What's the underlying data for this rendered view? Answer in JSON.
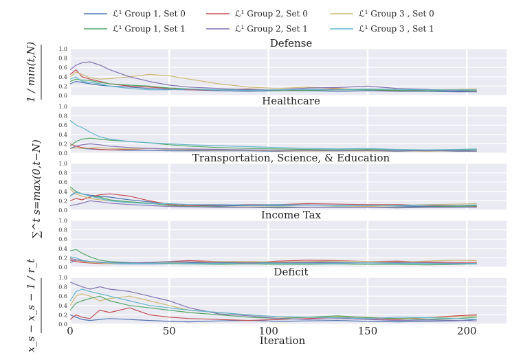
{
  "chart_data": {
    "type": "line",
    "xlabel": "Iteration",
    "ylabel": "1/min(t,N) · Σ_{s=max(0,t−N)}^{t} (x_s − x_{s−1})/r_t",
    "ylabel_parts": {
      "top": "x_s − x_s − 1 / r_t",
      "mid": "∑^t s=max(0,t−N)",
      "bot": "1 / min(t,N)"
    },
    "xlim": [
      0,
      220
    ],
    "ylim": [
      0,
      1.0
    ],
    "x_ticks": [
      0,
      50,
      100,
      150,
      200
    ],
    "y_ticks": [
      0.0,
      0.2,
      0.4,
      0.6,
      0.8,
      1.0
    ],
    "y_tick_labels": [
      "0.0",
      "0.2",
      "0.4",
      "0.6",
      "0.8",
      "1.0"
    ],
    "legend": [
      {
        "name": "ℒ¹ Group 1, Set 0",
        "color": "#4c72b0"
      },
      {
        "name": "ℒ¹ Group 2, Set 0",
        "color": "#c44e52"
      },
      {
        "name": "ℒ¹ Group 3 , Set 0",
        "color": "#ccb974"
      },
      {
        "name": "ℒ¹ Group 1, Set 1",
        "color": "#55a868"
      },
      {
        "name": "ℒ¹ Group 2, Set 1",
        "color": "#8172b2"
      },
      {
        "name": "ℒ¹ Group 3 , Set 1",
        "color": "#64b5cd"
      }
    ],
    "x_points": [
      0,
      3,
      6,
      10,
      15,
      20,
      30,
      40,
      50,
      60,
      75,
      90,
      105,
      120,
      135,
      150,
      165,
      180,
      195,
      205
    ],
    "panels": [
      {
        "title": "Defense",
        "series": [
          [
            0.25,
            0.3,
            0.28,
            0.25,
            0.22,
            0.2,
            0.18,
            0.15,
            0.13,
            0.12,
            0.1,
            0.09,
            0.1,
            0.1,
            0.09,
            0.1,
            0.09,
            0.09,
            0.08,
            0.08
          ],
          [
            0.45,
            0.55,
            0.4,
            0.35,
            0.3,
            0.25,
            0.2,
            0.18,
            0.15,
            0.12,
            0.12,
            0.14,
            0.1,
            0.12,
            0.14,
            0.12,
            0.1,
            0.12,
            0.1,
            0.09
          ],
          [
            0.4,
            0.5,
            0.45,
            0.38,
            0.35,
            0.36,
            0.4,
            0.45,
            0.42,
            0.35,
            0.25,
            0.18,
            0.15,
            0.18,
            0.15,
            0.12,
            0.14,
            0.12,
            0.13,
            0.14
          ],
          [
            0.3,
            0.35,
            0.33,
            0.32,
            0.28,
            0.25,
            0.22,
            0.2,
            0.16,
            0.14,
            0.12,
            0.13,
            0.1,
            0.11,
            0.12,
            0.12,
            0.11,
            0.1,
            0.11,
            0.1
          ],
          [
            0.55,
            0.65,
            0.7,
            0.72,
            0.65,
            0.55,
            0.4,
            0.3,
            0.22,
            0.18,
            0.15,
            0.12,
            0.12,
            0.16,
            0.17,
            0.2,
            0.15,
            0.13,
            0.1,
            0.08
          ],
          [
            0.35,
            0.4,
            0.3,
            0.28,
            0.25,
            0.2,
            0.15,
            0.12,
            0.12,
            0.14,
            0.12,
            0.11,
            0.12,
            0.13,
            0.12,
            0.14,
            0.13,
            0.12,
            0.12,
            0.12
          ]
        ]
      },
      {
        "title": "Healthcare",
        "series": [
          [
            0.1,
            0.12,
            0.1,
            0.09,
            0.08,
            0.07,
            0.06,
            0.06,
            0.05,
            0.05,
            0.05,
            0.05,
            0.04,
            0.05,
            0.05,
            0.05,
            0.04,
            0.05,
            0.04,
            0.04
          ],
          [
            0.2,
            0.15,
            0.12,
            0.1,
            0.08,
            0.07,
            0.08,
            0.1,
            0.09,
            0.07,
            0.06,
            0.06,
            0.05,
            0.05,
            0.05,
            0.05,
            0.05,
            0.05,
            0.05,
            0.05
          ],
          [
            0.1,
            0.12,
            0.1,
            0.11,
            0.12,
            0.1,
            0.09,
            0.1,
            0.08,
            0.07,
            0.06,
            0.06,
            0.05,
            0.05,
            0.05,
            0.05,
            0.05,
            0.04,
            0.05,
            0.05
          ],
          [
            0.15,
            0.25,
            0.3,
            0.32,
            0.3,
            0.28,
            0.25,
            0.22,
            0.18,
            0.15,
            0.12,
            0.1,
            0.09,
            0.08,
            0.07,
            0.08,
            0.07,
            0.06,
            0.06,
            0.08
          ],
          [
            0.1,
            0.15,
            0.18,
            0.2,
            0.18,
            0.15,
            0.12,
            0.1,
            0.09,
            0.09,
            0.08,
            0.07,
            0.06,
            0.06,
            0.05,
            0.06,
            0.05,
            0.05,
            0.05,
            0.05
          ],
          [
            0.7,
            0.6,
            0.55,
            0.45,
            0.35,
            0.3,
            0.25,
            0.22,
            0.2,
            0.18,
            0.16,
            0.14,
            0.12,
            0.1,
            0.09,
            0.1,
            0.08,
            0.07,
            0.08,
            0.09
          ]
        ]
      },
      {
        "title": "Transportation, Science, & Education",
        "series": [
          [
            0.3,
            0.4,
            0.35,
            0.32,
            0.3,
            0.28,
            0.22,
            0.18,
            0.12,
            0.1,
            0.09,
            0.1,
            0.1,
            0.11,
            0.1,
            0.1,
            0.09,
            0.08,
            0.09,
            0.1
          ],
          [
            0.2,
            0.25,
            0.22,
            0.28,
            0.33,
            0.35,
            0.3,
            0.2,
            0.12,
            0.1,
            0.11,
            0.12,
            0.12,
            0.14,
            0.13,
            0.12,
            0.12,
            0.1,
            0.09,
            0.08
          ],
          [
            0.45,
            0.35,
            0.3,
            0.25,
            0.22,
            0.2,
            0.18,
            0.15,
            0.1,
            0.08,
            0.07,
            0.07,
            0.07,
            0.06,
            0.07,
            0.08,
            0.1,
            0.12,
            0.13,
            0.14
          ],
          [
            0.5,
            0.4,
            0.35,
            0.3,
            0.28,
            0.22,
            0.18,
            0.15,
            0.1,
            0.08,
            0.07,
            0.06,
            0.07,
            0.06,
            0.07,
            0.06,
            0.06,
            0.07,
            0.08,
            0.09
          ],
          [
            0.1,
            0.12,
            0.15,
            0.2,
            0.18,
            0.15,
            0.12,
            0.1,
            0.08,
            0.07,
            0.06,
            0.06,
            0.05,
            0.06,
            0.06,
            0.06,
            0.05,
            0.06,
            0.06,
            0.06
          ],
          [
            0.3,
            0.38,
            0.35,
            0.3,
            0.25,
            0.2,
            0.16,
            0.14,
            0.14,
            0.12,
            0.12,
            0.11,
            0.12,
            0.11,
            0.1,
            0.1,
            0.1,
            0.11,
            0.1,
            0.11
          ]
        ]
      },
      {
        "title": "Income Tax",
        "series": [
          [
            0.1,
            0.15,
            0.12,
            0.1,
            0.09,
            0.08,
            0.07,
            0.07,
            0.08,
            0.09,
            0.1,
            0.1,
            0.1,
            0.11,
            0.1,
            0.09,
            0.09,
            0.08,
            0.08,
            0.08
          ],
          [
            0.15,
            0.12,
            0.1,
            0.09,
            0.08,
            0.08,
            0.09,
            0.1,
            0.12,
            0.14,
            0.12,
            0.1,
            0.13,
            0.15,
            0.14,
            0.12,
            0.13,
            0.11,
            0.1,
            0.1
          ],
          [
            0.2,
            0.15,
            0.12,
            0.1,
            0.09,
            0.08,
            0.09,
            0.1,
            0.1,
            0.11,
            0.12,
            0.12,
            0.11,
            0.12,
            0.13,
            0.12,
            0.11,
            0.13,
            0.15,
            0.14
          ],
          [
            0.35,
            0.38,
            0.3,
            0.22,
            0.15,
            0.12,
            0.1,
            0.09,
            0.08,
            0.07,
            0.06,
            0.07,
            0.06,
            0.06,
            0.07,
            0.06,
            0.06,
            0.05,
            0.06,
            0.07
          ],
          [
            0.18,
            0.16,
            0.14,
            0.12,
            0.11,
            0.1,
            0.09,
            0.1,
            0.12,
            0.11,
            0.09,
            0.08,
            0.09,
            0.1,
            0.09,
            0.09,
            0.1,
            0.09,
            0.08,
            0.08
          ],
          [
            0.22,
            0.2,
            0.15,
            0.12,
            0.1,
            0.09,
            0.08,
            0.08,
            0.09,
            0.08,
            0.08,
            0.09,
            0.08,
            0.08,
            0.08,
            0.09,
            0.08,
            0.08,
            0.07,
            0.08
          ]
        ]
      },
      {
        "title": "Deficit",
        "series": [
          [
            0.2,
            0.15,
            0.1,
            0.08,
            0.1,
            0.12,
            0.1,
            0.08,
            0.06,
            0.05,
            0.07,
            0.08,
            0.06,
            0.07,
            0.08,
            0.06,
            0.05,
            0.06,
            0.07,
            0.1
          ],
          [
            0.1,
            0.2,
            0.15,
            0.12,
            0.3,
            0.25,
            0.35,
            0.2,
            0.15,
            0.12,
            0.1,
            0.08,
            0.1,
            0.12,
            0.15,
            0.12,
            0.1,
            0.14,
            0.18,
            0.2
          ],
          [
            0.4,
            0.6,
            0.65,
            0.6,
            0.5,
            0.55,
            0.6,
            0.5,
            0.4,
            0.3,
            0.25,
            0.2,
            0.15,
            0.14,
            0.16,
            0.15,
            0.12,
            0.14,
            0.16,
            0.18
          ],
          [
            0.3,
            0.45,
            0.5,
            0.55,
            0.6,
            0.5,
            0.4,
            0.35,
            0.3,
            0.25,
            0.2,
            0.15,
            0.12,
            0.15,
            0.18,
            0.14,
            0.12,
            0.1,
            0.12,
            0.15
          ],
          [
            0.9,
            0.85,
            0.8,
            0.75,
            0.8,
            0.75,
            0.7,
            0.6,
            0.5,
            0.35,
            0.22,
            0.18,
            0.12,
            0.1,
            0.12,
            0.1,
            0.08,
            0.09,
            0.08,
            0.07
          ],
          [
            0.5,
            0.7,
            0.75,
            0.7,
            0.65,
            0.6,
            0.5,
            0.4,
            0.35,
            0.3,
            0.25,
            0.2,
            0.16,
            0.15,
            0.14,
            0.12,
            0.15,
            0.14,
            0.12,
            0.1
          ]
        ]
      }
    ]
  }
}
